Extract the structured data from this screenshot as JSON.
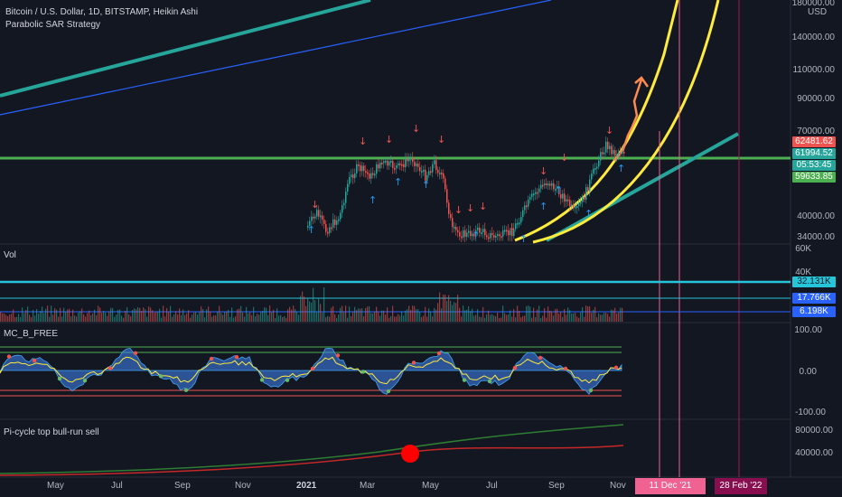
{
  "header": {
    "symbol_line": "Bitcoin / U.S. Dollar, 1D, BITSTAMP, Heikin Ashi",
    "strategy": "Parabolic SAR Strategy",
    "currency": "USD"
  },
  "price_axis": [
    "180000.00",
    "140000.00",
    "110000.00",
    "90000.00",
    "70000.00",
    "40000.00",
    "34000.00"
  ],
  "price_tags": [
    {
      "text": "62481.62",
      "color": "#ef5350"
    },
    {
      "text": "61994.52",
      "color": "#26a69a"
    },
    {
      "text": "05:53:45",
      "color": "#26a69a"
    },
    {
      "text": "59633.85",
      "color": "#4caf50"
    }
  ],
  "vol_pane": {
    "title": "Vol",
    "axis": [
      "60K",
      "40K"
    ],
    "levels": [
      {
        "text": "32.131K",
        "color": "#26c6da"
      },
      {
        "text": "17.766K",
        "color": "#2962ff"
      },
      {
        "text": "6.198K",
        "color": "#2962ff"
      }
    ]
  },
  "mc_pane": {
    "title": "MC_B_FREE",
    "axis": [
      "100.00",
      "0.00",
      "-100.00"
    ]
  },
  "pi_pane": {
    "title": "Pi-cycle top bull-run sell",
    "axis": [
      "80000.00",
      "40000.00"
    ]
  },
  "time_axis": [
    "May",
    "Jul",
    "Sep",
    "Nov",
    "2021",
    "Mar",
    "May",
    "Jul",
    "Sep",
    "Nov"
  ],
  "date_tags": [
    {
      "text": "11 Dec '21",
      "color": "#f06292"
    },
    {
      "text": "28 Feb '22",
      "color": "#880e4f"
    }
  ],
  "colors": {
    "bg": "#131722",
    "up": "#26a69a",
    "down": "#ef5350",
    "green_level": "#4caf50",
    "yellow": "#ffeb3b",
    "teal": "#26a69a",
    "blue": "#2962ff",
    "cyan": "#26c6da",
    "orange": "#ff8a50"
  }
}
